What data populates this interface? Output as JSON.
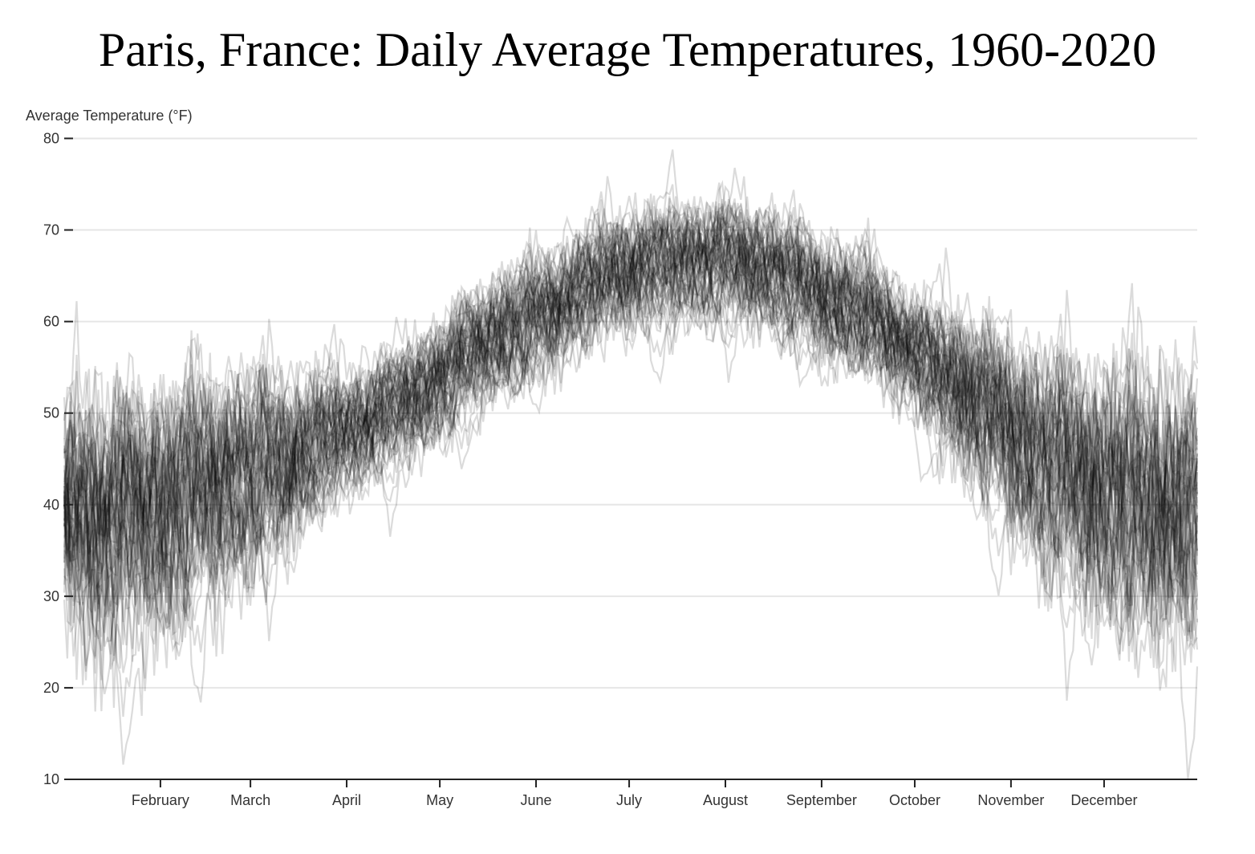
{
  "chart_data": {
    "type": "line",
    "title": "Paris, France: Daily Average Temperatures, 1960-2020",
    "ylabel": "Average Temperature (°F)",
    "xlabel": "",
    "ylim": [
      10,
      86
    ],
    "xlim": [
      1,
      366
    ],
    "y_ticks": [
      10,
      20,
      30,
      40,
      50,
      60,
      70,
      80
    ],
    "x_ticks": [
      {
        "label": "February",
        "day": 32
      },
      {
        "label": "March",
        "day": 61
      },
      {
        "label": "April",
        "day": 92
      },
      {
        "label": "May",
        "day": 122
      },
      {
        "label": "June",
        "day": 153
      },
      {
        "label": "July",
        "day": 183
      },
      {
        "label": "August",
        "day": 214
      },
      {
        "label": "September",
        "day": 245
      },
      {
        "label": "October",
        "day": 275
      },
      {
        "label": "November",
        "day": 306
      },
      {
        "label": "December",
        "day": 336
      }
    ],
    "grid": true,
    "series_color": "#000000",
    "series_opacity": 0.14,
    "year_range": [
      1960,
      2020
    ],
    "seasonal_profile": {
      "day": [
        1,
        15,
        32,
        46,
        61,
        76,
        92,
        107,
        122,
        137,
        153,
        168,
        183,
        198,
        214,
        229,
        245,
        260,
        275,
        290,
        306,
        321,
        336,
        351,
        366
      ],
      "mean_f": [
        40,
        39,
        40,
        42,
        44,
        46,
        48,
        51,
        54,
        58,
        61,
        64,
        66,
        67,
        67,
        66,
        63,
        61,
        57,
        53,
        48,
        45,
        42,
        41,
        40
      ]
    }
  }
}
